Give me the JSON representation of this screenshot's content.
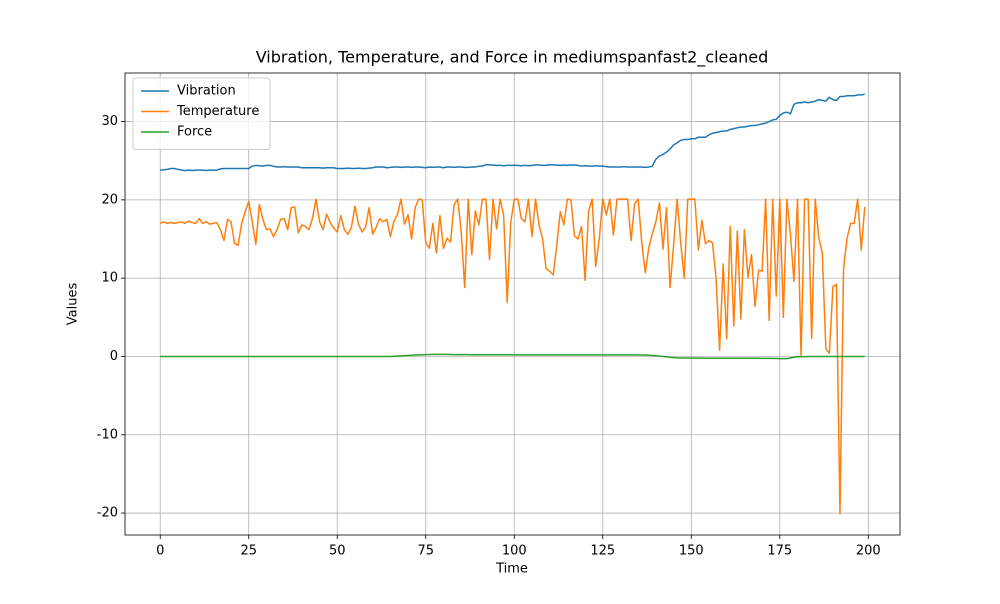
{
  "chart_data": {
    "type": "line",
    "title": "Vibration, Temperature, and Force in mediumspanfast2_cleaned",
    "x_label": "Time",
    "y_label": "Values",
    "x": [
      0,
      1,
      2,
      3,
      4,
      5,
      6,
      7,
      8,
      9,
      10,
      11,
      12,
      13,
      14,
      15,
      16,
      17,
      18,
      19,
      20,
      21,
      22,
      23,
      24,
      25,
      26,
      27,
      28,
      29,
      30,
      31,
      32,
      33,
      34,
      35,
      36,
      37,
      38,
      39,
      40,
      41,
      42,
      43,
      44,
      45,
      46,
      47,
      48,
      49,
      50,
      51,
      52,
      53,
      54,
      55,
      56,
      57,
      58,
      59,
      60,
      61,
      62,
      63,
      64,
      65,
      66,
      67,
      68,
      69,
      70,
      71,
      72,
      73,
      74,
      75,
      76,
      77,
      78,
      79,
      80,
      81,
      82,
      83,
      84,
      85,
      86,
      87,
      88,
      89,
      90,
      91,
      92,
      93,
      94,
      95,
      96,
      97,
      98,
      99,
      100,
      101,
      102,
      103,
      104,
      105,
      106,
      107,
      108,
      109,
      110,
      111,
      112,
      113,
      114,
      115,
      116,
      117,
      118,
      119,
      120,
      121,
      122,
      123,
      124,
      125,
      126,
      127,
      128,
      129,
      130,
      131,
      132,
      133,
      134,
      135,
      136,
      137,
      138,
      139,
      140,
      141,
      142,
      143,
      144,
      145,
      146,
      147,
      148,
      149,
      150,
      151,
      152,
      153,
      154,
      155,
      156,
      157,
      158,
      159,
      160,
      161,
      162,
      163,
      164,
      165,
      166,
      167,
      168,
      169,
      170,
      171,
      172,
      173,
      174,
      175,
      176,
      177,
      178,
      179,
      180,
      181,
      182,
      183,
      184,
      185,
      186,
      187,
      188,
      189,
      190,
      191,
      192,
      193,
      194,
      195,
      196,
      197,
      198,
      199
    ],
    "series": [
      {
        "name": "Vibration",
        "color": "#1f77b4",
        "values": [
          23.8,
          23.85,
          23.9,
          24.0,
          24.0,
          23.9,
          23.8,
          23.75,
          23.8,
          23.75,
          23.8,
          23.8,
          23.8,
          23.75,
          23.8,
          23.8,
          23.8,
          23.95,
          24.0,
          24.0,
          24.0,
          24.0,
          24.0,
          24.0,
          24.0,
          24.0,
          24.3,
          24.4,
          24.35,
          24.3,
          24.4,
          24.4,
          24.3,
          24.2,
          24.2,
          24.25,
          24.2,
          24.2,
          24.2,
          24.2,
          24.1,
          24.1,
          24.1,
          24.1,
          24.1,
          24.1,
          24.05,
          24.1,
          24.1,
          24.1,
          24.0,
          24.0,
          24.0,
          24.05,
          24.0,
          24.0,
          24.05,
          24.0,
          24.0,
          24.05,
          24.1,
          24.2,
          24.2,
          24.2,
          24.1,
          24.15,
          24.2,
          24.2,
          24.15,
          24.2,
          24.2,
          24.15,
          24.2,
          24.2,
          24.15,
          24.1,
          24.2,
          24.15,
          24.2,
          24.2,
          24.1,
          24.2,
          24.2,
          24.15,
          24.2,
          24.2,
          24.15,
          24.15,
          24.2,
          24.2,
          24.3,
          24.3,
          24.5,
          24.45,
          24.45,
          24.4,
          24.4,
          24.35,
          24.4,
          24.4,
          24.4,
          24.4,
          24.35,
          24.4,
          24.35,
          24.4,
          24.45,
          24.45,
          24.4,
          24.4,
          24.5,
          24.45,
          24.45,
          24.4,
          24.45,
          24.4,
          24.45,
          24.45,
          24.4,
          24.3,
          24.35,
          24.3,
          24.3,
          24.35,
          24.3,
          24.3,
          24.25,
          24.2,
          24.2,
          24.2,
          24.2,
          24.25,
          24.2,
          24.2,
          24.2,
          24.2,
          24.2,
          24.15,
          24.2,
          24.3,
          25.2,
          25.6,
          25.8,
          26.1,
          26.5,
          27.0,
          27.3,
          27.6,
          27.7,
          27.7,
          27.8,
          27.8,
          28.0,
          28.0,
          28.0,
          28.3,
          28.5,
          28.6,
          28.7,
          28.8,
          28.8,
          29.0,
          29.1,
          29.2,
          29.3,
          29.3,
          29.4,
          29.5,
          29.5,
          29.6,
          29.7,
          29.8,
          30.0,
          30.2,
          30.3,
          30.8,
          31.1,
          31.2,
          31.0,
          32.2,
          32.4,
          32.4,
          32.5,
          32.4,
          32.5,
          32.6,
          32.8,
          32.7,
          32.6,
          33.1,
          32.8,
          32.7,
          33.2,
          33.2,
          33.3,
          33.3,
          33.3,
          33.4,
          33.4,
          33.5
        ]
      },
      {
        "name": "Temperature",
        "color": "#ff7f0e",
        "values": [
          17.0,
          17.2,
          17.0,
          17.1,
          17.0,
          17.1,
          17.2,
          17.0,
          17.3,
          17.1,
          17.0,
          17.6,
          17.0,
          17.2,
          16.9,
          17.0,
          17.1,
          16.2,
          14.8,
          17.5,
          17.2,
          14.4,
          14.2,
          17.0,
          18.5,
          19.8,
          17.2,
          14.3,
          19.4,
          17.5,
          16.2,
          16.3,
          15.3,
          16.2,
          17.5,
          17.6,
          16.2,
          19.0,
          19.1,
          15.8,
          16.8,
          16.6,
          16.2,
          17.6,
          20.1,
          17.2,
          16.2,
          18.2,
          17.1,
          16.4,
          15.9,
          18.0,
          16.2,
          15.6,
          16.5,
          19.2,
          16.9,
          15.9,
          16.5,
          19.0,
          15.6,
          16.5,
          17.6,
          17.2,
          17.5,
          15.3,
          17.3,
          18.1,
          20.1,
          16.9,
          18.1,
          15.0,
          19.0,
          20.1,
          20.0,
          14.5,
          13.8,
          17.0,
          13.2,
          18.0,
          13.8,
          15.1,
          14.6,
          19.4,
          20.1,
          16.0,
          8.8,
          20.1,
          13.0,
          18.6,
          16.8,
          20.1,
          20.1,
          12.4,
          20.1,
          16.3,
          20.1,
          18.0,
          6.9,
          17.1,
          20.1,
          20.1,
          17.6,
          17.2,
          20.1,
          15.3,
          20.1,
          16.8,
          15.0,
          11.2,
          10.9,
          10.4,
          14.2,
          18.5,
          16.8,
          20.1,
          20.0,
          15.4,
          15.0,
          16.6,
          9.7,
          18.6,
          20.1,
          11.5,
          15.0,
          20.1,
          18.1,
          20.1,
          15.5,
          20.1,
          20.1,
          20.1,
          20.1,
          14.8,
          19.5,
          20.1,
          14.6,
          10.7,
          13.9,
          15.7,
          17.2,
          19.6,
          13.7,
          19.0,
          8.8,
          14.2,
          20.1,
          14.6,
          10.0,
          20.1,
          20.1,
          20.1,
          13.6,
          17.4,
          14.4,
          14.8,
          14.5,
          10.0,
          0.8,
          11.8,
          2.3,
          16.6,
          3.9,
          16.0,
          4.8,
          16.2,
          10.1,
          13.0,
          6.4,
          11.0,
          10.9,
          20.1,
          4.6,
          20.1,
          7.7,
          20.1,
          5.0,
          20.1,
          15.6,
          9.6,
          20.1,
          0.0,
          20.1,
          20.1,
          2.3,
          20.1,
          15.2,
          13.2,
          1.0,
          0.4,
          8.9,
          9.2,
          -20.1,
          11.2,
          15.1,
          17.0,
          17.0,
          20.1,
          13.6,
          19.1
        ]
      },
      {
        "name": "Force",
        "color": "#2ca02c",
        "values": [
          0,
          0,
          0,
          0,
          0,
          0,
          0,
          0,
          0,
          0,
          0,
          0,
          0,
          0,
          0,
          0,
          0,
          0,
          0,
          0,
          0,
          0,
          0,
          0,
          0,
          0,
          0,
          0,
          0,
          0,
          0,
          0,
          0,
          0,
          0,
          0,
          0,
          0,
          0,
          0,
          0,
          0,
          0,
          0,
          0,
          0,
          0,
          0,
          0,
          0,
          0,
          0,
          0,
          0,
          0,
          0,
          0,
          0,
          0,
          0,
          0,
          0,
          0,
          0,
          0,
          0,
          0.02,
          0.05,
          0.08,
          0.1,
          0.12,
          0.15,
          0.18,
          0.2,
          0.22,
          0.24,
          0.25,
          0.26,
          0.27,
          0.27,
          0.27,
          0.26,
          0.25,
          0.24,
          0.23,
          0.23,
          0.23,
          0.23,
          0.22,
          0.22,
          0.22,
          0.22,
          0.22,
          0.22,
          0.22,
          0.22,
          0.22,
          0.22,
          0.22,
          0.22,
          0.21,
          0.21,
          0.2,
          0.2,
          0.2,
          0.2,
          0.2,
          0.2,
          0.2,
          0.2,
          0.2,
          0.2,
          0.2,
          0.2,
          0.2,
          0.2,
          0.2,
          0.2,
          0.2,
          0.2,
          0.2,
          0.2,
          0.2,
          0.2,
          0.2,
          0.2,
          0.2,
          0.2,
          0.2,
          0.2,
          0.2,
          0.2,
          0.2,
          0.2,
          0.2,
          0.2,
          0.19,
          0.18,
          0.15,
          0.12,
          0.08,
          0.04,
          0.0,
          -0.05,
          -0.1,
          -0.15,
          -0.18,
          -0.2,
          -0.2,
          -0.2,
          -0.2,
          -0.21,
          -0.21,
          -0.21,
          -0.22,
          -0.22,
          -0.22,
          -0.22,
          -0.22,
          -0.22,
          -0.23,
          -0.23,
          -0.23,
          -0.23,
          -0.23,
          -0.23,
          -0.23,
          -0.23,
          -0.23,
          -0.23,
          -0.24,
          -0.24,
          -0.25,
          -0.25,
          -0.26,
          -0.27,
          -0.28,
          -0.28,
          -0.2,
          -0.1,
          -0.05,
          -0.03,
          -0.02,
          0,
          0,
          0,
          0,
          0,
          0,
          0,
          0,
          0,
          0,
          0,
          0,
          0,
          0,
          0,
          0,
          0
        ]
      }
    ],
    "xlim": [
      -9.95,
      208.95
    ],
    "xticks": [
      0,
      25,
      50,
      75,
      100,
      125,
      150,
      175,
      200
    ],
    "ylim": [
      -22.8,
      36.2
    ],
    "yticks": [
      -20,
      -10,
      0,
      10,
      20,
      30
    ],
    "grid": true,
    "legend": "upper-left"
  }
}
